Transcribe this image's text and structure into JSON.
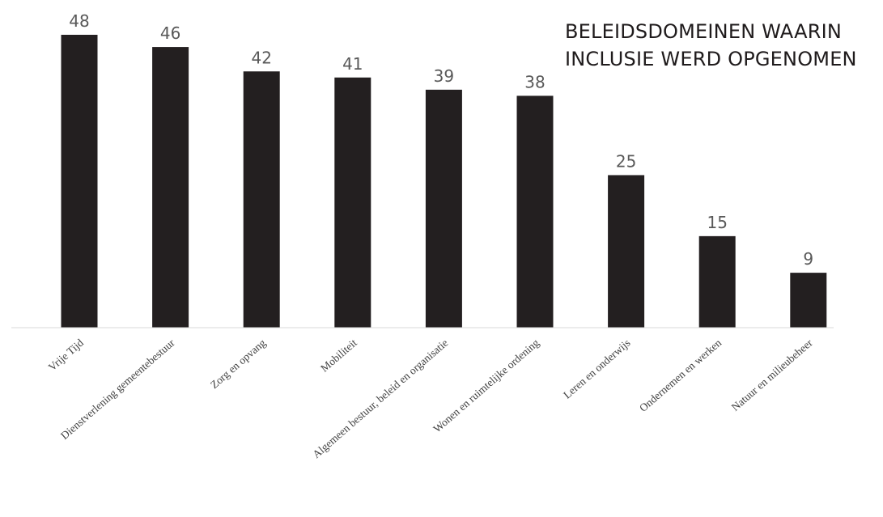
{
  "chart_data": {
    "type": "bar",
    "title_lines": [
      "BELEIDSDOMEINEN WAARIN",
      "INCLUSIE WERD OPGENOMEN"
    ],
    "categories": [
      "Vrije Tijd",
      "Dienstverlening gemeentebestuur",
      "Zorg en opvang",
      "Mobiliteit",
      "Algemeen bestuur, beleid en organisatie",
      "Wonen en ruimtelijke ordening",
      "Leren en onderwijs",
      "Ondernemen en werken",
      "Natuur en milieubeheer"
    ],
    "values": [
      48,
      46,
      42,
      41,
      39,
      38,
      25,
      15,
      9
    ],
    "ylim": [
      0,
      48
    ],
    "grid": false,
    "bar_color": "#231f20",
    "axis_color": "#d9d9d9"
  }
}
